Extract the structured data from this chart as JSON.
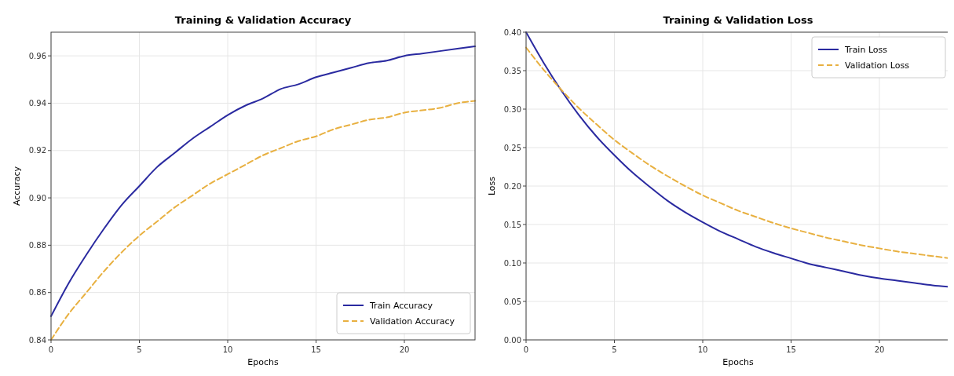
{
  "chart_data": [
    {
      "type": "line",
      "title": "Training & Validation Accuracy",
      "xlabel": "Epochs",
      "ylabel": "Accuracy",
      "x": [
        0,
        1,
        2,
        3,
        4,
        5,
        6,
        7,
        8,
        9,
        10,
        11,
        12,
        13,
        14,
        15,
        16,
        17,
        18,
        19,
        20,
        21,
        22,
        23,
        24
      ],
      "series": [
        {
          "name": "Train Accuracy",
          "color": "#2a2aa0",
          "line_style": "solid",
          "values": [
            0.85,
            0.864,
            0.876,
            0.887,
            0.897,
            0.905,
            0.913,
            0.919,
            0.925,
            0.93,
            0.935,
            0.939,
            0.942,
            0.946,
            0.948,
            0.951,
            0.953,
            0.955,
            0.957,
            0.958,
            0.96,
            0.961,
            0.962,
            0.963,
            0.964
          ]
        },
        {
          "name": "Validation Accuracy",
          "color": "#e8b040",
          "line_style": "dashed",
          "values": [
            0.84,
            0.851,
            0.86,
            0.869,
            0.877,
            0.884,
            0.89,
            0.896,
            0.901,
            0.906,
            0.91,
            0.914,
            0.918,
            0.921,
            0.924,
            0.926,
            0.929,
            0.931,
            0.933,
            0.934,
            0.936,
            0.937,
            0.938,
            0.94,
            0.941
          ]
        }
      ],
      "xlim": [
        0,
        24
      ],
      "xticks": [
        0,
        5,
        10,
        15,
        20
      ],
      "ylim": [
        0.84,
        0.97
      ],
      "yticks": [
        {
          "value": 0.84,
          "label": "0.84"
        },
        {
          "value": 0.86,
          "label": "0.86"
        },
        {
          "value": 0.88,
          "label": "0.88"
        },
        {
          "value": 0.9,
          "label": "0.90"
        },
        {
          "value": 0.92,
          "label": "0.92"
        },
        {
          "value": 0.94,
          "label": "0.94"
        },
        {
          "value": 0.96,
          "label": "0.96"
        }
      ],
      "grid": true,
      "legend": "bottom right"
    },
    {
      "type": "line",
      "title": "Training & Validation Loss",
      "xlabel": "Epochs",
      "ylabel": "Loss",
      "x": [
        0,
        1,
        2,
        3,
        4,
        5,
        6,
        7,
        8,
        9,
        10,
        11,
        12,
        13,
        14,
        15,
        16,
        17,
        18,
        19,
        20,
        21,
        22,
        23,
        24
      ],
      "series": [
        {
          "name": "Train Loss",
          "color": "#2a2aa0",
          "line_style": "solid",
          "values": [
            0.4,
            0.36,
            0.324,
            0.292,
            0.264,
            0.24,
            0.218,
            0.199,
            0.181,
            0.166,
            0.153,
            0.141,
            0.131,
            0.121,
            0.113,
            0.106,
            0.099,
            0.094,
            0.089,
            0.084,
            0.08,
            0.077,
            0.074,
            0.071,
            0.069
          ]
        },
        {
          "name": "Validation Loss",
          "color": "#e8b040",
          "line_style": "dashed",
          "values": [
            0.38,
            0.351,
            0.325,
            0.301,
            0.28,
            0.26,
            0.243,
            0.227,
            0.213,
            0.2,
            0.188,
            0.178,
            0.168,
            0.16,
            0.152,
            0.145,
            0.139,
            0.133,
            0.128,
            0.123,
            0.119,
            0.115,
            0.112,
            0.109,
            0.106
          ]
        }
      ],
      "xlim": [
        0,
        24
      ],
      "xticks": [
        0,
        5,
        10,
        15,
        20
      ],
      "ylim": [
        0,
        0.4
      ],
      "yticks": [
        {
          "value": 0,
          "label": "0.00"
        },
        {
          "value": 0.05,
          "label": "0.05"
        },
        {
          "value": 0.1,
          "label": "0.10"
        },
        {
          "value": 0.15,
          "label": "0.15"
        },
        {
          "value": 0.2,
          "label": "0.20"
        },
        {
          "value": 0.25,
          "label": "0.25"
        },
        {
          "value": 0.3,
          "label": "0.30"
        },
        {
          "value": 0.35,
          "label": "0.35"
        },
        {
          "value": 0.4,
          "label": "0.40"
        }
      ],
      "grid": true,
      "legend": "top right"
    }
  ]
}
